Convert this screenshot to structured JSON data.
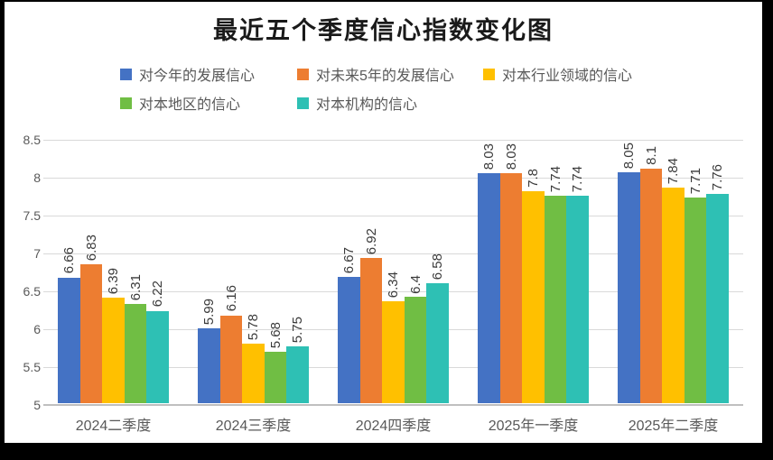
{
  "chart_data": {
    "type": "bar",
    "title": "最近五个季度信心指数变化图",
    "categories": [
      "2024二季度",
      "2024三季度",
      "2024四季度",
      "2025年一季度",
      "2025年二季度"
    ],
    "series": [
      {
        "name": "对今年的发展信心",
        "color": "#4472C4",
        "values": [
          6.66,
          5.99,
          6.67,
          8.03,
          8.05
        ]
      },
      {
        "name": "对未来5年的发展信心",
        "color": "#ED7D31",
        "values": [
          6.83,
          6.16,
          6.92,
          8.03,
          8.1
        ]
      },
      {
        "name": "对本行业领域的信心",
        "color": "#FFC000",
        "values": [
          6.39,
          5.78,
          6.34,
          7.8,
          7.84
        ]
      },
      {
        "name": "对本地区的信心",
        "color": "#70BE44",
        "values": [
          6.31,
          5.68,
          6.4,
          7.74,
          7.71
        ]
      },
      {
        "name": "对本机构的信心",
        "color": "#2EC0B4",
        "values": [
          6.22,
          5.75,
          6.58,
          7.74,
          7.76
        ]
      }
    ],
    "y_ticks": [
      8.5,
      8,
      7.5,
      7,
      6.5,
      6,
      5.5,
      5
    ],
    "ylim": [
      5,
      8.5
    ],
    "xlabel": "",
    "ylabel": "",
    "grid": true,
    "legend_position": "top",
    "data_labels": {
      "shown": true,
      "rotation_degrees": 90
    },
    "colors": {
      "grid_line": "#D9D9D9",
      "axis_line": "#BFBFBF",
      "tick_text": "#595959",
      "value_label_text": "#3A3A3A",
      "title_text": "#1A1A1A",
      "frame": "#000000",
      "background": "#FFFFFF"
    }
  }
}
